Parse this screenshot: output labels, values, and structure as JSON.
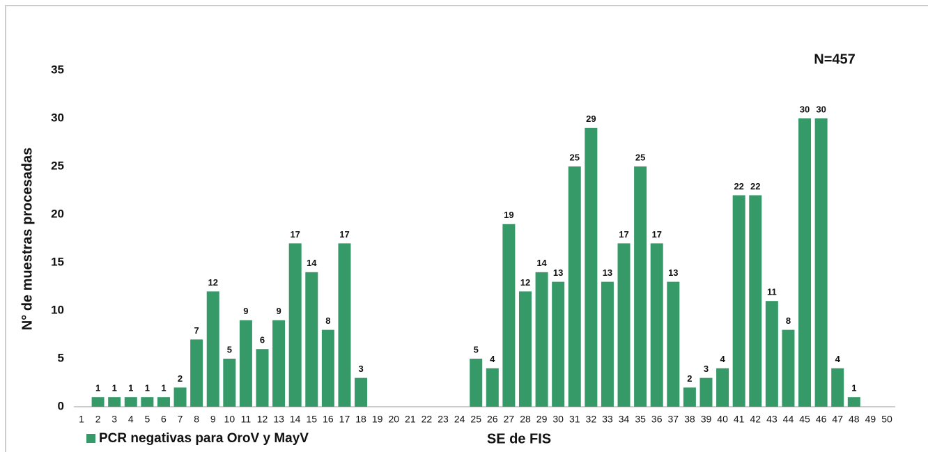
{
  "chart_data": {
    "type": "bar",
    "annotation": "N=457",
    "y_label": "N° de muestras procesadas",
    "x_label": "SE de FIS",
    "series": [
      {
        "name": "PCR negativas para OroV y MayV",
        "color": "#359a68",
        "values": [
          null,
          1,
          1,
          1,
          1,
          1,
          2,
          7,
          12,
          5,
          9,
          6,
          9,
          17,
          14,
          8,
          17,
          3,
          null,
          null,
          null,
          null,
          null,
          null,
          5,
          4,
          19,
          12,
          14,
          13,
          25,
          29,
          13,
          17,
          25,
          17,
          13,
          2,
          3,
          4,
          22,
          22,
          11,
          8,
          30,
          30,
          4,
          1,
          null,
          null
        ]
      }
    ],
    "categories": [
      "1",
      "2",
      "3",
      "4",
      "5",
      "6",
      "7",
      "8",
      "9",
      "10",
      "11",
      "12",
      "13",
      "14",
      "15",
      "16",
      "17",
      "18",
      "19",
      "20",
      "21",
      "22",
      "23",
      "24",
      "25",
      "26",
      "27",
      "28",
      "29",
      "30",
      "31",
      "32",
      "33",
      "34",
      "35",
      "36",
      "37",
      "38",
      "39",
      "40",
      "41",
      "42",
      "43",
      "44",
      "45",
      "46",
      "47",
      "48",
      "49",
      "50"
    ],
    "ylim": [
      0,
      35
    ],
    "yticks": [
      0,
      5,
      10,
      15,
      20,
      25,
      30,
      35
    ],
    "grid": false,
    "legend": "bottom-left"
  }
}
